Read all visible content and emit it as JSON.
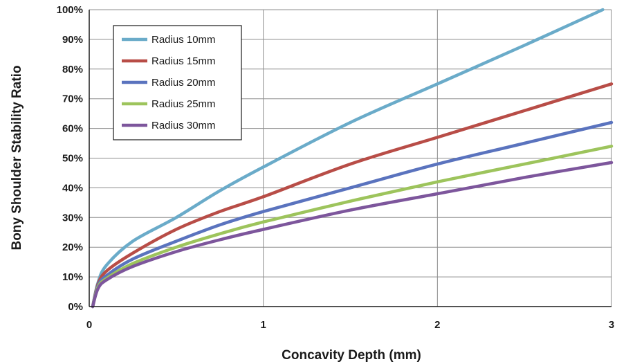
{
  "chart_data": {
    "type": "line",
    "title": "",
    "xlabel": "Concavity Depth (mm)",
    "ylabel": "Bony Shoulder Stability Ratio",
    "xlim": [
      0,
      3
    ],
    "ylim": [
      0,
      100
    ],
    "x_ticks": [
      "0",
      "1",
      "2",
      "3"
    ],
    "y_ticks": [
      "0%",
      "10%",
      "20%",
      "30%",
      "40%",
      "50%",
      "60%",
      "70%",
      "80%",
      "90%",
      "100%"
    ],
    "grid": true,
    "legend_position": "top-left",
    "series": [
      {
        "name": "Radius 10mm",
        "color": "#6aabc9",
        "x": [
          0.02,
          0.05,
          0.1,
          0.25,
          0.5,
          0.75,
          1,
          1.5,
          2,
          2.5,
          2.95
        ],
        "y": [
          0,
          8,
          14,
          22,
          30,
          39,
          47,
          62,
          75,
          88,
          100
        ]
      },
      {
        "name": "Radius 15mm",
        "color": "#b84d47",
        "x": [
          0.02,
          0.05,
          0.1,
          0.25,
          0.5,
          0.75,
          1,
          1.5,
          2,
          2.5,
          3
        ],
        "y": [
          0,
          7.5,
          12,
          18,
          26,
          32,
          37,
          48,
          57,
          66,
          75
        ]
      },
      {
        "name": "Radius 20mm",
        "color": "#5a73be",
        "x": [
          0.02,
          0.05,
          0.1,
          0.25,
          0.5,
          0.75,
          1,
          1.5,
          2,
          2.5,
          3
        ],
        "y": [
          0,
          7,
          10.5,
          16,
          22,
          27.5,
          32,
          40,
          48,
          55,
          62
        ]
      },
      {
        "name": "Radius 25mm",
        "color": "#9dc45c",
        "x": [
          0.02,
          0.05,
          0.1,
          0.25,
          0.5,
          0.75,
          1,
          1.5,
          2,
          2.5,
          3
        ],
        "y": [
          0,
          6.5,
          9.5,
          14.5,
          20,
          24.5,
          28.5,
          35.5,
          42,
          48,
          54
        ]
      },
      {
        "name": "Radius 30mm",
        "color": "#7d569c",
        "x": [
          0.02,
          0.05,
          0.1,
          0.25,
          0.5,
          0.75,
          1,
          1.5,
          2,
          2.5,
          3
        ],
        "y": [
          0,
          6,
          9,
          13.5,
          18.5,
          22.5,
          26,
          32.5,
          38,
          43.5,
          48.5
        ]
      }
    ]
  }
}
